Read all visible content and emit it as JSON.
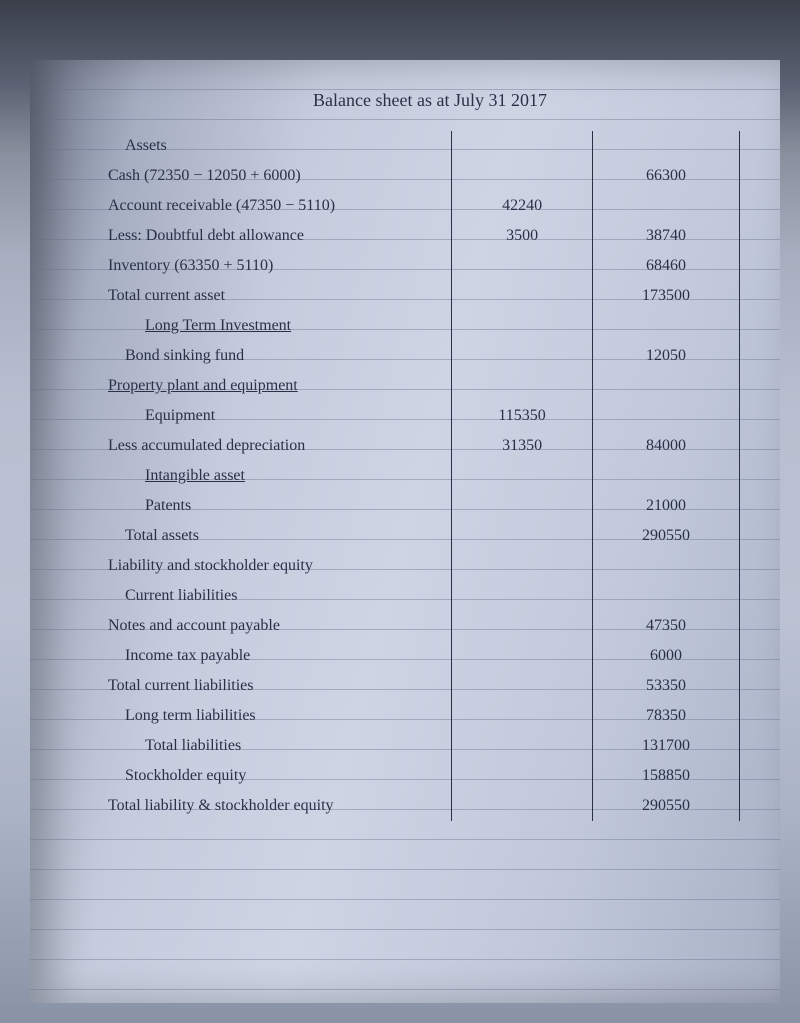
{
  "title": "Balance sheet as at July 31 2017",
  "rows": [
    {
      "desc": "Assets",
      "col1": "",
      "col2": "",
      "class": "indent1"
    },
    {
      "desc": "Cash (72350 − 12050 + 6000)",
      "col1": "",
      "col2": "66300",
      "class": ""
    },
    {
      "desc": "Account receivable (47350 − 5110)",
      "col1": "42240",
      "col2": "",
      "class": ""
    },
    {
      "desc": "Less: Doubtful debt allowance",
      "col1": "3500",
      "col2": "38740",
      "class": ""
    },
    {
      "desc": "Inventory (63350 + 5110)",
      "col1": "",
      "col2": "68460",
      "class": ""
    },
    {
      "desc": "Total current asset",
      "col1": "",
      "col2": "173500",
      "class": ""
    },
    {
      "desc": "Long Term Investment",
      "col1": "",
      "col2": "",
      "class": "indent2 underline"
    },
    {
      "desc": "Bond sinking fund",
      "col1": "",
      "col2": "12050",
      "class": "indent1"
    },
    {
      "desc": "Property plant and equipment",
      "col1": "",
      "col2": "",
      "class": "underline"
    },
    {
      "desc": "Equipment",
      "col1": "115350",
      "col2": "",
      "class": "indent2"
    },
    {
      "desc": "Less accumulated depreciation",
      "col1": "31350",
      "col2": "84000",
      "class": ""
    },
    {
      "desc": "Intangible asset",
      "col1": "",
      "col2": "",
      "class": "indent2 underline"
    },
    {
      "desc": "Patents",
      "col1": "",
      "col2": "21000",
      "class": "indent2"
    },
    {
      "desc": "Total assets",
      "col1": "",
      "col2": "290550",
      "class": "indent1"
    },
    {
      "desc": "Liability and stockholder equity",
      "col1": "",
      "col2": "",
      "class": ""
    },
    {
      "desc": "Current liabilities",
      "col1": "",
      "col2": "",
      "class": "indent1"
    },
    {
      "desc": "Notes and account payable",
      "col1": "",
      "col2": "47350",
      "class": ""
    },
    {
      "desc": "Income tax payable",
      "col1": "",
      "col2": "6000",
      "class": "indent1"
    },
    {
      "desc": "Total current liabilities",
      "col1": "",
      "col2": "53350",
      "class": ""
    },
    {
      "desc": "Long term liabilities",
      "col1": "",
      "col2": "78350",
      "class": "indent1"
    },
    {
      "desc": "Total liabilities",
      "col1": "",
      "col2": "131700",
      "class": "indent2"
    },
    {
      "desc": "Stockholder equity",
      "col1": "",
      "col2": "158850",
      "class": "indent1"
    },
    {
      "desc": "Total liability & stockholder equity",
      "col1": "",
      "col2": "290550",
      "class": ""
    }
  ]
}
